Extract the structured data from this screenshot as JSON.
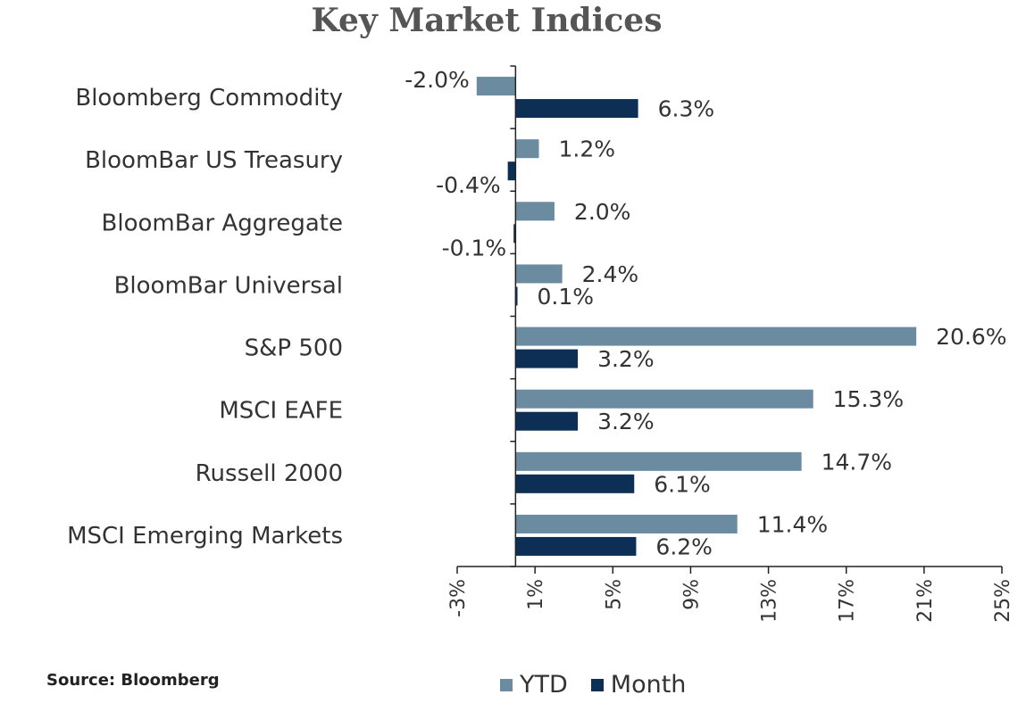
{
  "chart_data": {
    "type": "bar",
    "orientation": "horizontal",
    "title": "Key Market Indices",
    "categories": [
      "Bloomberg Commodity",
      "BloomBar US Treasury",
      "BloomBar Aggregate",
      "BloomBar Universal",
      "S&P 500",
      "MSCI EAFE",
      "Russell 2000",
      "MSCI Emerging Markets"
    ],
    "series": [
      {
        "name": "YTD",
        "color": "#6a8ba0",
        "values": [
          -2.0,
          1.2,
          2.0,
          2.4,
          20.6,
          15.3,
          14.7,
          11.4
        ],
        "labels": [
          "-2.0%",
          "1.2%",
          "2.0%",
          "2.4%",
          "20.6%",
          "15.3%",
          "14.7%",
          "11.4%"
        ]
      },
      {
        "name": "Month",
        "color": "#0d2f55",
        "values": [
          6.3,
          -0.4,
          -0.1,
          0.1,
          3.2,
          3.2,
          6.1,
          6.2
        ],
        "labels": [
          "6.3%",
          "-0.4%",
          "-0.1%",
          "0.1%",
          "3.2%",
          "3.2%",
          "6.1%",
          "6.2%"
        ]
      }
    ],
    "xlim": [
      -3,
      25
    ],
    "xticks": [
      -3,
      1,
      5,
      9,
      13,
      17,
      21,
      25
    ],
    "xtick_labels": [
      "-3%",
      "1%",
      "5%",
      "9%",
      "13%",
      "17%",
      "21%",
      "25%"
    ],
    "legend_position": "bottom",
    "grid": false
  },
  "source": "Source: Bloomberg"
}
